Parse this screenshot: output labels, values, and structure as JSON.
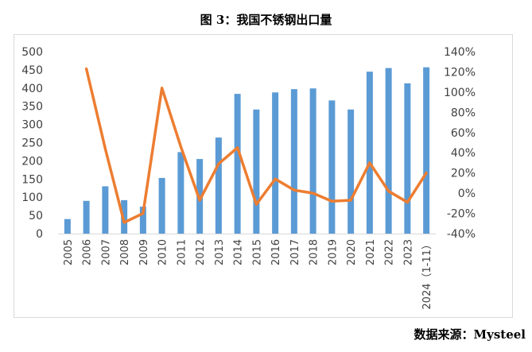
{
  "title": "图 3：我国不锈钢出口量",
  "source": "数据来源：Mysteel",
  "chart_data": {
    "type": "bar",
    "categories": [
      "2005",
      "2006",
      "2007",
      "2008",
      "2009",
      "2010",
      "2011",
      "2012",
      "2013",
      "2014",
      "2015",
      "2016",
      "2017",
      "2018",
      "2019",
      "2020",
      "2021",
      "2022",
      "2023",
      "2024（1-11）"
    ],
    "series": [
      {
        "type": "bar",
        "color": "#5b9bd5",
        "values": [
          40,
          90,
          130,
          92,
          74,
          153,
          224,
          205,
          264,
          384,
          341,
          388,
          397,
          399,
          366,
          341,
          445,
          455,
          413,
          457
        ]
      },
      {
        "type": "line",
        "color": "#ed7d31",
        "axis": "right",
        "values": [
          null,
          1.23,
          0.44,
          -0.29,
          -0.2,
          1.04,
          0.46,
          -0.07,
          0.29,
          0.45,
          -0.11,
          0.14,
          0.03,
          0.0,
          -0.08,
          -0.07,
          0.3,
          0.02,
          -0.09,
          0.2
        ]
      }
    ],
    "yticks": [
      "0",
      "50",
      "100",
      "150",
      "200",
      "250",
      "300",
      "350",
      "400",
      "450",
      "500"
    ],
    "ylim": [
      0,
      500
    ],
    "y2ticks": [
      "-40%",
      "-20%",
      "0%",
      "20%",
      "40%",
      "60%",
      "80%",
      "100%",
      "120%",
      "140%"
    ],
    "y2lim": [
      -0.4,
      1.4
    ],
    "grid": false
  }
}
